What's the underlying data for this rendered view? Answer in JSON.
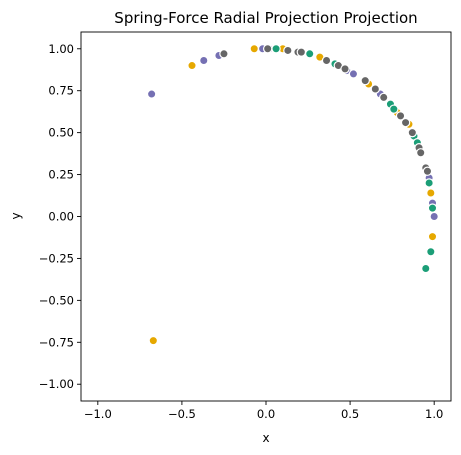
{
  "chart_data": {
    "type": "scatter",
    "title": "Spring-Force Radial Projection Projection",
    "xlabel": "x",
    "ylabel": "y",
    "xlim": [
      -1.1,
      1.1
    ],
    "ylim": [
      -1.1,
      1.1
    ],
    "xticks": [
      -1.0,
      -0.5,
      0.0,
      0.5,
      1.0
    ],
    "xtick_labels": [
      "−1.0",
      "−0.5",
      "0.0",
      "0.5",
      "1.0"
    ],
    "yticks": [
      1.0,
      0.75,
      0.5,
      0.25,
      0.0,
      -0.25,
      -0.5,
      -0.75,
      -1.0
    ],
    "ytick_labels": [
      "1.00",
      "0.75",
      "0.50",
      "0.25",
      "0.00",
      "−0.25",
      "−0.50",
      "−0.75",
      "−1.00"
    ],
    "grid": false,
    "legend": null,
    "series": [
      {
        "color": "#e6a800",
        "points": [
          [
            -0.67,
            -0.74
          ],
          [
            -0.44,
            0.9
          ],
          [
            -0.07,
            1.0
          ],
          [
            0.1,
            1.0
          ],
          [
            0.32,
            0.95
          ],
          [
            0.61,
            0.79
          ],
          [
            0.78,
            0.62
          ],
          [
            0.85,
            0.55
          ],
          [
            0.98,
            0.14
          ],
          [
            0.99,
            -0.12
          ]
        ]
      },
      {
        "color": "#7570b3",
        "points": [
          [
            -0.68,
            0.73
          ],
          [
            -0.37,
            0.93
          ],
          [
            -0.28,
            0.96
          ],
          [
            -0.02,
            1.0
          ],
          [
            0.02,
            1.0
          ],
          [
            0.48,
            0.87
          ],
          [
            0.52,
            0.85
          ],
          [
            0.68,
            0.73
          ],
          [
            0.97,
            0.23
          ],
          [
            0.99,
            0.08
          ],
          [
            1.0,
            0.0
          ]
        ]
      },
      {
        "color": "#1b9e77",
        "points": [
          [
            0.06,
            1.0
          ],
          [
            0.26,
            0.97
          ],
          [
            0.41,
            0.91
          ],
          [
            0.74,
            0.67
          ],
          [
            0.76,
            0.64
          ],
          [
            0.88,
            0.48
          ],
          [
            0.9,
            0.44
          ],
          [
            0.97,
            0.2
          ],
          [
            0.99,
            0.05
          ],
          [
            0.98,
            -0.21
          ],
          [
            0.95,
            -0.31
          ]
        ]
      },
      {
        "color": "#666666",
        "points": [
          [
            -0.25,
            0.97
          ],
          [
            0.01,
            1.0
          ],
          [
            0.13,
            0.99
          ],
          [
            0.19,
            0.98
          ],
          [
            0.21,
            0.98
          ],
          [
            0.36,
            0.93
          ],
          [
            0.43,
            0.9
          ],
          [
            0.47,
            0.88
          ],
          [
            0.59,
            0.81
          ],
          [
            0.65,
            0.76
          ],
          [
            0.7,
            0.71
          ],
          [
            0.8,
            0.6
          ],
          [
            0.83,
            0.56
          ],
          [
            0.87,
            0.5
          ],
          [
            0.91,
            0.41
          ],
          [
            0.92,
            0.38
          ],
          [
            0.95,
            0.29
          ],
          [
            0.96,
            0.27
          ]
        ]
      }
    ]
  }
}
